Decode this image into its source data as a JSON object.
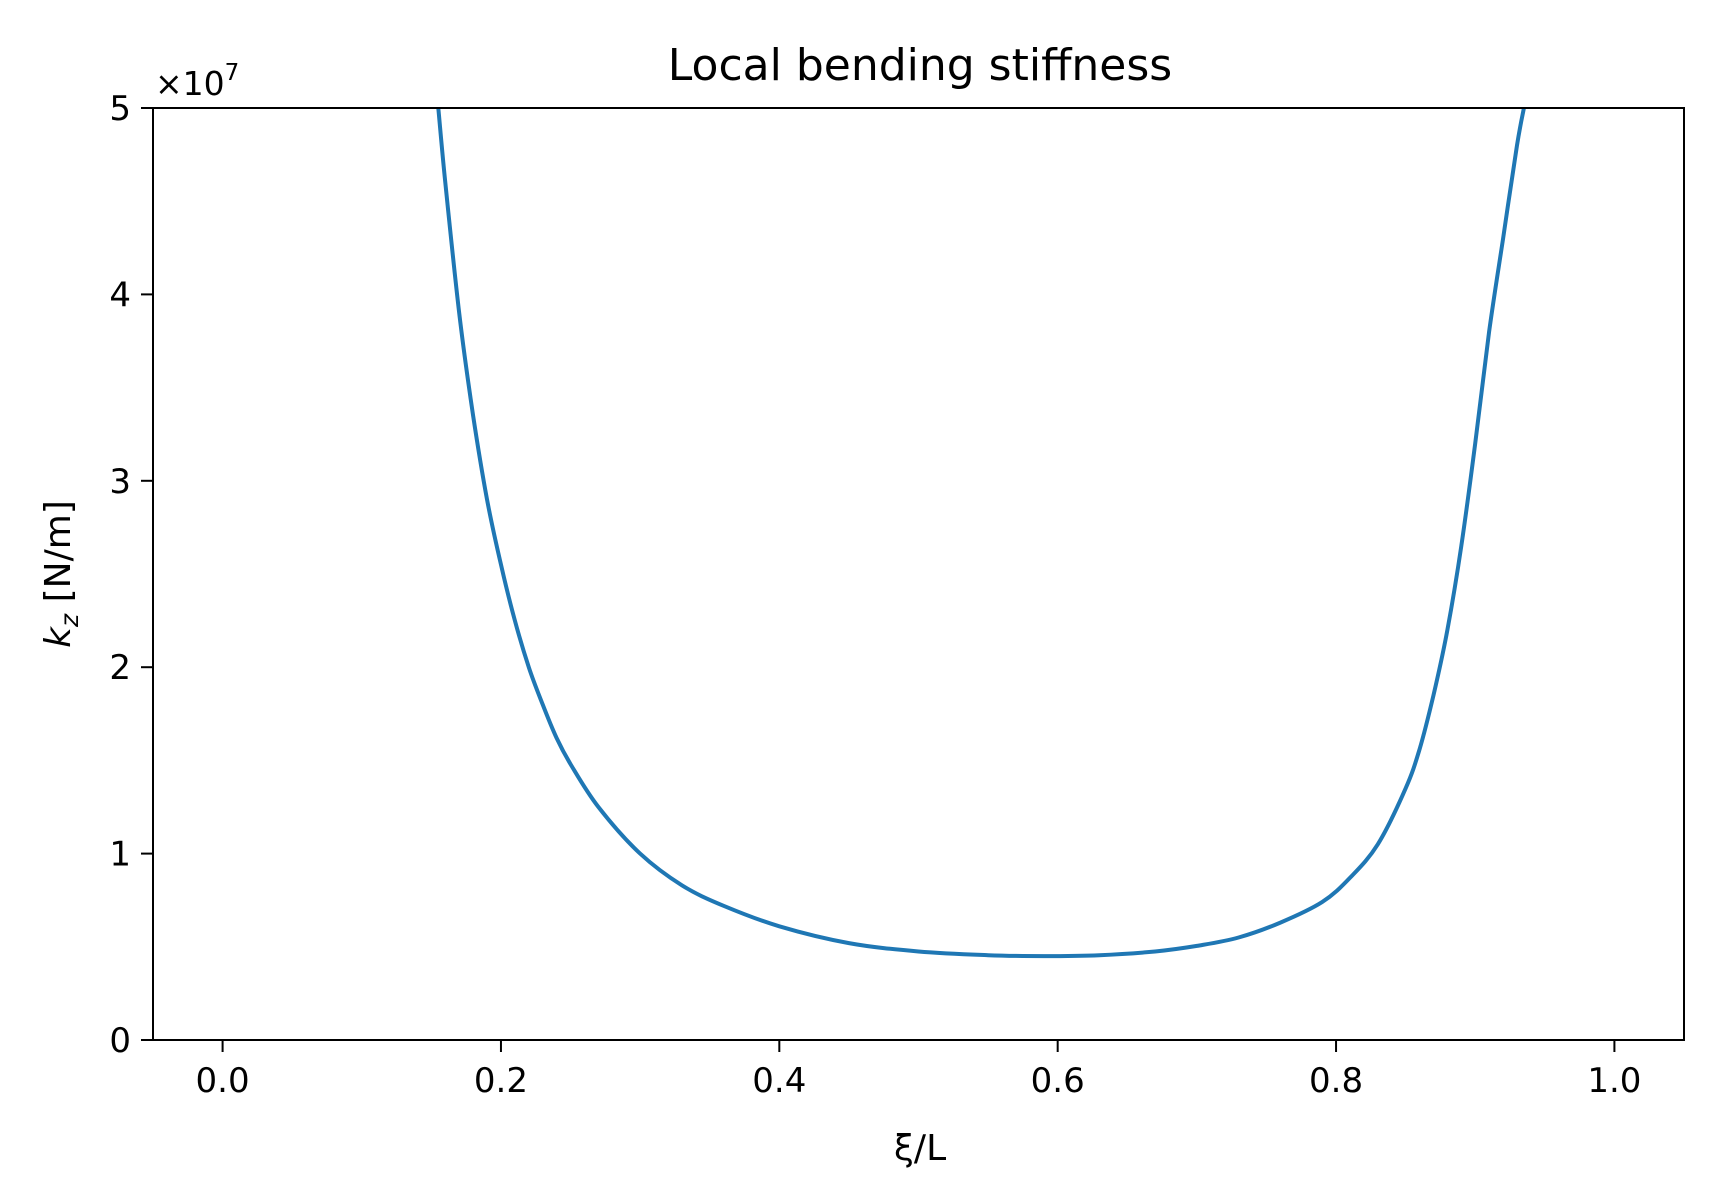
{
  "chart_data": {
    "type": "line",
    "title": "Local bending stiffness",
    "xlabel": "ξ/L",
    "ylabel": "kz [N/m]",
    "ylabel_parts": {
      "symbol": "k",
      "subscript": "z",
      "unit": " [N/m]"
    },
    "y_offset_label": "×10",
    "y_offset_exponent": "7",
    "xlim": [
      -0.05,
      1.05
    ],
    "ylim": [
      0,
      5
    ],
    "y_multiplier": 10000000,
    "x_ticks": [
      0.0,
      0.2,
      0.4,
      0.6,
      0.8,
      1.0
    ],
    "x_tick_labels": [
      "0.0",
      "0.2",
      "0.4",
      "0.6",
      "0.8",
      "1.0"
    ],
    "y_ticks": [
      0,
      1,
      2,
      3,
      4,
      5
    ],
    "y_tick_labels": [
      "0",
      "1",
      "2",
      "3",
      "4",
      "5"
    ],
    "grid": false,
    "series": [
      {
        "color": "#1f77b4",
        "x": [
          0.155,
          0.16,
          0.17,
          0.18,
          0.19,
          0.2,
          0.21,
          0.22,
          0.23,
          0.24,
          0.25,
          0.27,
          0.3,
          0.33,
          0.36,
          0.4,
          0.45,
          0.5,
          0.55,
          0.59,
          0.63,
          0.67,
          0.7,
          0.73,
          0.76,
          0.79,
          0.81,
          0.83,
          0.85,
          0.86,
          0.87,
          0.88,
          0.89,
          0.9,
          0.91,
          0.92,
          0.93,
          0.935
        ],
        "y": [
          5.0,
          4.6,
          3.9,
          3.35,
          2.9,
          2.55,
          2.25,
          2.0,
          1.8,
          1.62,
          1.48,
          1.25,
          1.0,
          0.83,
          0.72,
          0.61,
          0.52,
          0.475,
          0.455,
          0.45,
          0.455,
          0.475,
          0.505,
          0.55,
          0.63,
          0.74,
          0.87,
          1.05,
          1.35,
          1.56,
          1.85,
          2.2,
          2.65,
          3.2,
          3.8,
          4.3,
          4.8,
          5.0
        ]
      }
    ]
  }
}
